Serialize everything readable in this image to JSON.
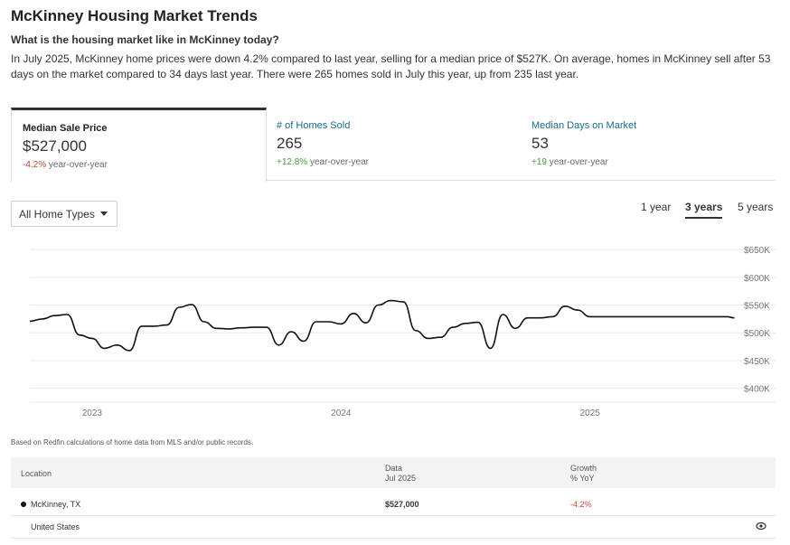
{
  "header": {
    "title": "McKinney Housing Market Trends",
    "subtitle": "What is the housing market like in McKinney today?",
    "summary": "In July 2025, McKinney home prices were down 4.2% compared to last year, selling for a median price of $527K. On average, homes in McKinney sell after 53 days on the market compared to 34 days last year. There were 265 homes sold in July this year, up from 235 last year."
  },
  "tabs": [
    {
      "label": "Median Sale Price",
      "value": "$527,000",
      "change": "-4.2%",
      "change_suffix": "year-over-year"
    },
    {
      "label": "# of Homes Sold",
      "value": "265",
      "change": "+12.8%",
      "change_suffix": "year-over-year"
    },
    {
      "label": "Median Days on Market",
      "value": "53",
      "change": "+19",
      "change_suffix": "year-over-year"
    }
  ],
  "filter": {
    "selected": "All Home Types"
  },
  "ranges": [
    "1 year",
    "3 years",
    "5 years"
  ],
  "active_range": "3 years",
  "chart_data": {
    "type": "line",
    "title": "",
    "xlabel": "",
    "ylabel": "",
    "x_tick_labels": [
      "2023",
      "2024",
      "2025"
    ],
    "x_tick_positions": [
      2023.0,
      2024.0,
      2025.0
    ],
    "y_tick_labels": [
      "$650K",
      "$600K",
      "$550K",
      "$500K",
      "$450K",
      "$400K"
    ],
    "y_tick_values": [
      650,
      600,
      550,
      500,
      450,
      400
    ],
    "xlim": [
      2022.75,
      2025.6
    ],
    "ylim": [
      375,
      660
    ],
    "grid": true,
    "series": [
      {
        "x": [
          2022.75,
          2022.8,
          2022.85,
          2022.9,
          2022.95,
          2023.0,
          2023.05,
          2023.1,
          2023.15,
          2023.2,
          2023.25,
          2023.3,
          2023.35,
          2023.4,
          2023.45,
          2023.5,
          2023.55,
          2023.6,
          2023.65,
          2023.7,
          2023.75,
          2023.8,
          2023.85,
          2023.9,
          2023.95,
          2024.0,
          2024.05,
          2024.1,
          2024.15,
          2024.2,
          2024.25,
          2024.3,
          2024.35,
          2024.4,
          2024.45,
          2024.5,
          2024.55,
          2024.6,
          2024.65,
          2024.7,
          2024.75,
          2024.8,
          2024.85,
          2024.9,
          2024.95,
          2025.0,
          2025.05,
          2025.1,
          2025.15,
          2025.2,
          2025.25,
          2025.3,
          2025.35,
          2025.4,
          2025.45,
          2025.5,
          2025.55,
          2025.58
        ],
        "values": [
          521,
          525,
          531,
          533,
          496,
          490,
          472,
          478,
          468,
          512,
          512,
          514,
          546,
          551,
          520,
          508,
          507,
          509,
          510,
          510,
          478,
          502,
          485,
          520,
          520,
          516,
          535,
          518,
          550,
          558,
          556,
          504,
          490,
          492,
          510,
          517,
          519,
          472,
          533,
          508,
          527,
          527,
          529,
          548,
          541,
          529,
          529,
          529,
          529,
          529,
          529,
          529,
          529,
          529,
          529,
          529,
          529,
          527
        ]
      }
    ]
  },
  "footnote": "Based on Redfin calculations of home data from MLS and/or public records.",
  "table": {
    "headers": {
      "location": "Location",
      "data": "Data",
      "data_sub": "Jul 2025",
      "growth": "Growth",
      "growth_sub": "% YoY"
    },
    "rows": [
      {
        "location": "McKinney, TX",
        "data": "$527,000",
        "growth": "-4.2%"
      },
      {
        "location": "United States",
        "data": "",
        "growth": ""
      }
    ]
  }
}
